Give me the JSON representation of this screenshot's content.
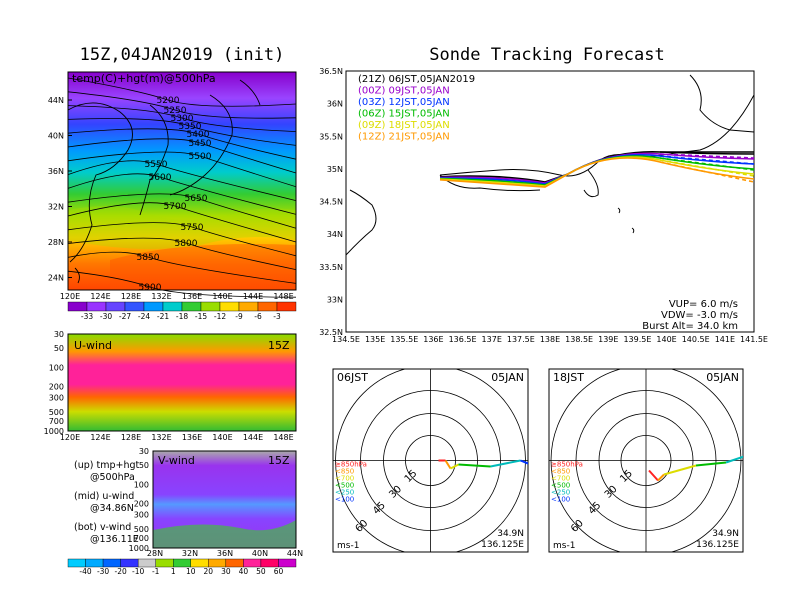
{
  "left_title": "15Z,04JAN2019 (init)",
  "right_title": "Sonde Tracking Forecast",
  "map_label": "temp(C)+hgt(m)@500hPa",
  "contours": [
    "5200",
    "5250",
    "5300",
    "5350",
    "5400",
    "5450",
    "5500",
    "5550",
    "5600",
    "5650",
    "5700",
    "5750",
    "5800",
    "5850",
    "5900"
  ],
  "map_lat_ticks": [
    "44N",
    "40N",
    "36N",
    "32N",
    "28N",
    "24N"
  ],
  "lon_ticks": [
    "120E",
    "124E",
    "128E",
    "132E",
    "136E",
    "140E",
    "144E",
    "148E"
  ],
  "temp_colorbar": [
    "-33",
    "-30",
    "-27",
    "-24",
    "-21",
    "-18",
    "-15",
    "-12",
    "-9",
    "-6",
    "-3"
  ],
  "uwind": {
    "label": "U-wind",
    "time": "15Z",
    "p_ticks": [
      "30",
      "50",
      "100",
      "200",
      "300",
      "500",
      "700",
      "1000"
    ]
  },
  "vwind": {
    "label": "V-wind",
    "time": "15Z",
    "p_ticks": [
      "30",
      "50",
      "100",
      "200",
      "300",
      "500",
      "700",
      "1000"
    ],
    "lat_ticks": [
      "28N",
      "32N",
      "36N",
      "40N",
      "44N"
    ]
  },
  "notes": [
    {
      "a": "(up)  tmp+hgt",
      "b": "@500hPa"
    },
    {
      "a": "(mid)  u-wind",
      "b": "@34.86N"
    },
    {
      "a": "(bot)  v-wind",
      "b": "@136.11E"
    }
  ],
  "wind_colorbar": [
    "-40",
    "-30",
    "-20",
    "-10",
    "-1",
    "1",
    "10",
    "20",
    "30",
    "40",
    "50",
    "60"
  ],
  "track": {
    "lat_ticks": [
      "36.5N",
      "36N",
      "35.5N",
      "35N",
      "34.5N",
      "34N",
      "33.5N",
      "33N",
      "32.5N"
    ],
    "lon_ticks": [
      "134.5E",
      "135E",
      "135.5E",
      "136E",
      "136.5E",
      "137E",
      "137.5E",
      "138E",
      "138.5E",
      "139E",
      "139.5E",
      "140E",
      "140.5E",
      "141E",
      "141.5E"
    ],
    "launches": [
      {
        "code": "(21Z)",
        "time": "06JST,05JAN2019",
        "color": "#000000"
      },
      {
        "code": "(00Z)",
        "time": "09JST,05JAN",
        "color": "#9900cc"
      },
      {
        "code": "(03Z)",
        "time": "12JST,05JAN",
        "color": "#0033ff"
      },
      {
        "code": "(06Z)",
        "time": "15JST,05JAN",
        "color": "#00bb00"
      },
      {
        "code": "(09Z)",
        "time": "18JST,05JAN",
        "color": "#dddd00"
      },
      {
        "code": "(12Z)",
        "time": "21JST,05JAN",
        "color": "#ff9900"
      }
    ],
    "vup": "VUP=  6.0 m/s",
    "vdw": "VDW= -3.0 m/s",
    "burst": "Burst Alt= 34.0 km"
  },
  "hodographs": [
    {
      "time": "06JST",
      "date": "05JAN",
      "lat": "34.9N",
      "lon": "136.125E",
      "unit": "ms-1"
    },
    {
      "time": "18JST",
      "date": "05JAN",
      "lat": "34.9N",
      "lon": "136.125E",
      "unit": "ms-1"
    }
  ],
  "ring_labels": [
    "15",
    "30",
    "45",
    "60"
  ],
  "hodo_legend": [
    {
      "text": "≥850hPa",
      "color": "#ff2222"
    },
    {
      "text": "<850",
      "color": "#ff9900"
    },
    {
      "text": "<700",
      "color": "#dddd00"
    },
    {
      "text": "<500",
      "color": "#00bb00"
    },
    {
      "text": "<250",
      "color": "#00bbbb"
    },
    {
      "text": "<100",
      "color": "#0033ff"
    }
  ]
}
